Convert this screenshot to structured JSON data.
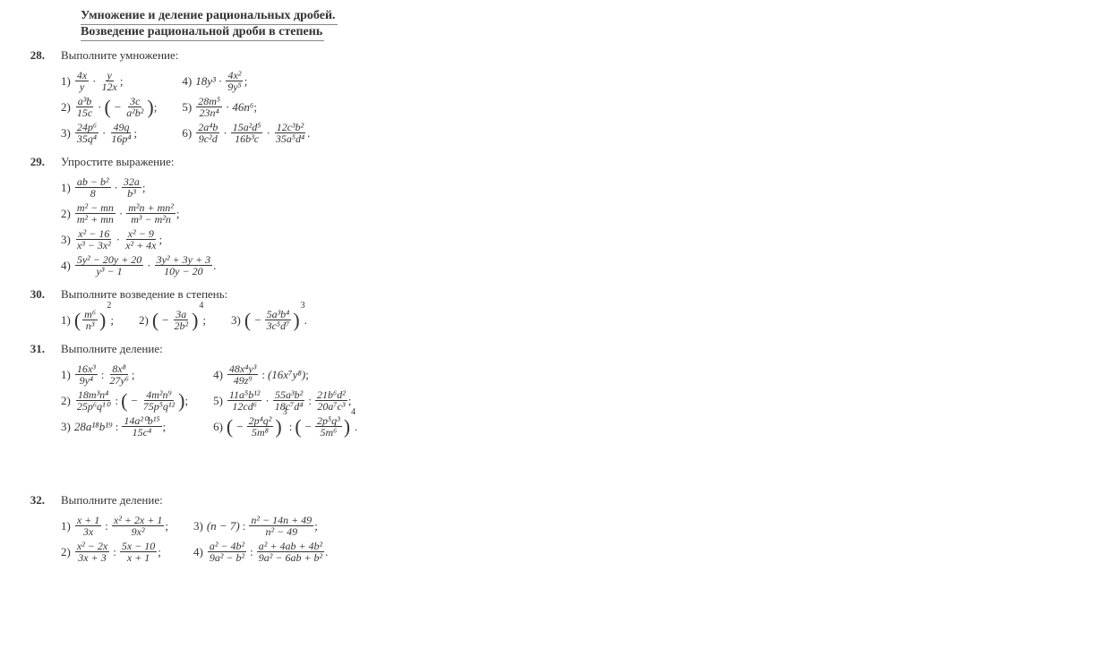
{
  "header": {
    "line1": "Умножение и деление рациональных дробей.",
    "line2": "Возведение рациональной дроби в степень"
  },
  "problems": [
    {
      "num": "28.",
      "title": "Выполните умножение:",
      "columns": [
        [
          {
            "label": "1)",
            "type": "mult",
            "a": {
              "n": "4x",
              "d": "y"
            },
            "b": {
              "n": "y",
              "d": "12x"
            },
            "tail": ";"
          },
          {
            "label": "2)",
            "type": "mult_paren",
            "a": {
              "n": "a³b",
              "d": "15c"
            },
            "b": {
              "neg": true,
              "n": "3c",
              "d": "a²b²"
            },
            "tail": ";"
          },
          {
            "label": "3)",
            "type": "mult",
            "a": {
              "n": "24p⁶",
              "d": "35q⁴"
            },
            "b": {
              "n": "49q",
              "d": "16p⁴"
            },
            "tail": ";"
          }
        ],
        [
          {
            "label": "4)",
            "type": "scalar_mult",
            "s": "18y³",
            "a": {
              "n": "4x²",
              "d": "9y⁵"
            },
            "tail": ";"
          },
          {
            "label": "5)",
            "type": "frac_scalar",
            "a": {
              "n": "28m⁵",
              "d": "23n⁴"
            },
            "s": "46n⁶",
            "tail": ";"
          },
          {
            "label": "6)",
            "type": "mult3",
            "a": {
              "n": "2a⁴b",
              "d": "9c²d"
            },
            "b": {
              "n": "15a²d⁵",
              "d": "16b³c"
            },
            "c": {
              "n": "12c³b²",
              "d": "35a⁵d⁴"
            },
            "tail": "."
          }
        ]
      ]
    },
    {
      "num": "29.",
      "title": "Упростите выражение:",
      "columns": [
        [
          {
            "label": "1)",
            "type": "mult",
            "a": {
              "n": "ab − b²",
              "d": "8"
            },
            "b": {
              "n": "32a",
              "d": "b³"
            },
            "tail": ";"
          },
          {
            "label": "2)",
            "type": "mult",
            "a": {
              "n": "m² − mn",
              "d": "m² + mn"
            },
            "b": {
              "n": "m²n + mn²",
              "d": "m³ − m²n"
            },
            "tail": ";"
          },
          {
            "label": "3)",
            "type": "mult",
            "a": {
              "n": "x² − 16",
              "d": "x³ − 3x²"
            },
            "b": {
              "n": "x² − 9",
              "d": "x² + 4x"
            },
            "tail": ";"
          },
          {
            "label": "4)",
            "type": "mult",
            "a": {
              "n": "5y² − 20y + 20",
              "d": "y³ − 1"
            },
            "b": {
              "n": "3y² + 3y + 3",
              "d": "10y − 20"
            },
            "tail": "."
          }
        ]
      ]
    },
    {
      "num": "30.",
      "title": "Выполните возведение в степень:",
      "columns": [
        [
          {
            "label": "1)",
            "type": "power",
            "neg": false,
            "n": "m⁶",
            "d": "n³",
            "p": "2",
            "tail": ";"
          }
        ],
        [
          {
            "label": "2)",
            "type": "power",
            "neg": true,
            "n": "3a",
            "d": "2b²",
            "p": "4",
            "tail": ";"
          }
        ],
        [
          {
            "label": "3)",
            "type": "power",
            "neg": true,
            "n": "5a³b⁴",
            "d": "3c⁵d⁷",
            "p": "3",
            "tail": "."
          }
        ]
      ]
    },
    {
      "num": "31.",
      "title": "Выполните деление:",
      "columns": [
        [
          {
            "label": "1)",
            "type": "div",
            "a": {
              "n": "16x³",
              "d": "9y⁴"
            },
            "b": {
              "n": "8x⁸",
              "d": "27y⁶"
            },
            "tail": ";"
          },
          {
            "label": "2)",
            "type": "div_paren",
            "a": {
              "n": "18m³n⁴",
              "d": "25p⁶q¹⁰"
            },
            "b": {
              "neg": true,
              "n": "4m²n⁹",
              "d": "75p⁵q¹²"
            },
            "tail": ";"
          },
          {
            "label": "3)",
            "type": "scalar_div",
            "s": "28a¹⁸b¹⁹",
            "a": {
              "n": "14a²⁰b¹⁵",
              "d": "15c⁴"
            },
            "tail": ";"
          }
        ],
        [
          {
            "label": "4)",
            "type": "div_scalar_paren",
            "a": {
              "n": "48x⁴y³",
              "d": "49z⁹"
            },
            "s": "16x⁷y⁸",
            "tail": ";"
          },
          {
            "label": "5)",
            "type": "mult_div",
            "a": {
              "n": "11a⁵b¹²",
              "d": "12cd⁶"
            },
            "b": {
              "n": "55a³b²",
              "d": "18c⁷d⁴"
            },
            "c": {
              "n": "21b⁶d²",
              "d": "20a⁷c³"
            },
            "tail": ";"
          },
          {
            "label": "6)",
            "type": "pow_div_pow",
            "a": {
              "neg": true,
              "n": "2p⁴q²",
              "d": "5m⁸",
              "p": "3"
            },
            "b": {
              "neg": true,
              "n": "2p⁵q³",
              "d": "5m⁶",
              "p": "4"
            },
            "tail": "."
          }
        ]
      ]
    },
    {
      "num": "32.",
      "title": "Выполните деление:",
      "gap": true,
      "columns": [
        [
          {
            "label": "1)",
            "type": "div",
            "a": {
              "n": "x + 1",
              "d": "3x"
            },
            "b": {
              "n": "x² + 2x + 1",
              "d": "9x²"
            },
            "tail": ";"
          },
          {
            "label": "2)",
            "type": "div",
            "a": {
              "n": "x² − 2x",
              "d": "3x + 3"
            },
            "b": {
              "n": "5x − 10",
              "d": "x + 1"
            },
            "tail": ";"
          }
        ],
        [
          {
            "label": "3)",
            "type": "scalar_paren_div",
            "s": "(n − 7)",
            "a": {
              "n": "n² − 14n + 49",
              "d": "n² − 49"
            },
            "tail": ";"
          },
          {
            "label": "4)",
            "type": "div",
            "a": {
              "n": "a² − 4b²",
              "d": "9a² − b²"
            },
            "b": {
              "n": "a² + 4ab + 4b²",
              "d": "9a² − 6ab + b²"
            },
            "tail": "."
          }
        ]
      ]
    }
  ]
}
